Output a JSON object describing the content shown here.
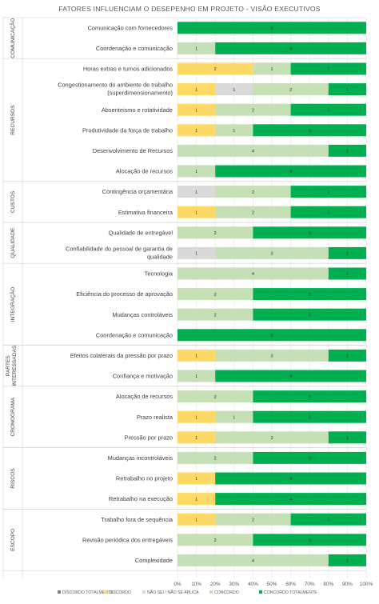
{
  "chart_data": {
    "type": "bar",
    "orientation": "horizontal",
    "stacked": "percent",
    "title": "FATORES INFLUENCIAM O DESEPENHO EM PROJETO - VISÃO EXECUTIVOS",
    "xlim": [
      0,
      100
    ],
    "x_ticks": [
      "0%",
      "10%",
      "20%",
      "30%",
      "40%",
      "50%",
      "60%",
      "70%",
      "80%",
      "90%",
      "100%"
    ],
    "legend_position": "bottom",
    "series": [
      {
        "name": "DISCORDO TOTALMENTE",
        "color": "#7f7f7f"
      },
      {
        "name": "DISCORDO",
        "color": "#ffd966"
      },
      {
        "name": "NÃO SEI / NÃO SE APLICA",
        "color": "#d9d9d9"
      },
      {
        "name": "CONCORDO",
        "color": "#c5e0b4"
      },
      {
        "name": "CONCORDO TOTALMENTE",
        "color": "#00b050"
      }
    ],
    "groups": [
      {
        "label": "COMUNICAÇÃO",
        "rows": [
          {
            "label": "Comunicação com fornecedores",
            "values": [
              0,
              0,
              0,
              0,
              5
            ]
          },
          {
            "label": "Coordenação e comunicação",
            "values": [
              0,
              0,
              0,
              1,
              4
            ]
          }
        ]
      },
      {
        "label": "RECURSOS",
        "rows": [
          {
            "label": "Horas extras e turnos adicionados",
            "values": [
              0,
              2,
              0,
              1,
              2
            ]
          },
          {
            "label": "Congestionamento do ambiente de trabalho (superdimensionamento)",
            "values": [
              0,
              1,
              1,
              2,
              1
            ]
          },
          {
            "label": "Absenteismo e rotatividade",
            "values": [
              0,
              1,
              0,
              2,
              2
            ]
          },
          {
            "label": "Produtividade da força de trabalho",
            "values": [
              0,
              1,
              0,
              1,
              3
            ]
          },
          {
            "label": "Desenvolvimento de Recursos",
            "values": [
              0,
              0,
              0,
              4,
              1
            ]
          },
          {
            "label": "Alocação de recursos",
            "values": [
              0,
              0,
              0,
              1,
              4
            ]
          }
        ]
      },
      {
        "label": "CUSTOS",
        "rows": [
          {
            "label": "Contingência orçamentária",
            "values": [
              0,
              0,
              1,
              2,
              2
            ]
          },
          {
            "label": "Estimativa financeira",
            "values": [
              0,
              1,
              0,
              2,
              2
            ]
          }
        ]
      },
      {
        "label": "QUALIDADE",
        "rows": [
          {
            "label": "Qualidade de entregável",
            "values": [
              0,
              0,
              0,
              2,
              3
            ]
          },
          {
            "label": "Confiabilidade do pessoal de garantia de qualidade",
            "values": [
              0,
              0,
              1,
              3,
              1
            ]
          }
        ]
      },
      {
        "label": "INTEGRAÇÃO",
        "rows": [
          {
            "label": "Tecnologia",
            "values": [
              0,
              0,
              0,
              4,
              1
            ]
          },
          {
            "label": "Eficiência do processo de aprovação",
            "values": [
              0,
              0,
              0,
              2,
              3
            ]
          },
          {
            "label": "Mudanças controláveis",
            "values": [
              0,
              0,
              0,
              2,
              3
            ]
          },
          {
            "label": "Coordenação e comunicação",
            "values": [
              0,
              0,
              0,
              0,
              5
            ]
          }
        ]
      },
      {
        "label": "PARTES INTERESSADAS",
        "rows": [
          {
            "label": "Efeitos colaterais da pressão por prazo",
            "values": [
              0,
              1,
              0,
              3,
              1
            ]
          },
          {
            "label": "Confiança e motivação",
            "values": [
              0,
              0,
              0,
              1,
              4
            ]
          }
        ]
      },
      {
        "label": "CRONOGRAMA",
        "rows": [
          {
            "label": "Alocação de recursos",
            "values": [
              0,
              0,
              0,
              2,
              3
            ]
          },
          {
            "label": "Prazo realista",
            "values": [
              0,
              1,
              0,
              1,
              3
            ]
          },
          {
            "label": "Pressão por prazo",
            "values": [
              0,
              1,
              0,
              3,
              1
            ]
          }
        ]
      },
      {
        "label": "RISCOS",
        "rows": [
          {
            "label": "Mudanças incontroláveis",
            "values": [
              0,
              0,
              0,
              2,
              3
            ]
          },
          {
            "label": "Retrabalho no projeto",
            "values": [
              0,
              1,
              0,
              0,
              4
            ]
          },
          {
            "label": "Retrabalho na execução",
            "values": [
              0,
              1,
              0,
              0,
              4
            ]
          }
        ]
      },
      {
        "label": "ESCOPO",
        "rows": [
          {
            "label": "Trabalho fora de sequência",
            "values": [
              0,
              1,
              0,
              2,
              2
            ]
          },
          {
            "label": "Revisão periódica dos entregáveis",
            "values": [
              0,
              0,
              0,
              2,
              3
            ]
          },
          {
            "label": "Complexidade",
            "values": [
              0,
              0,
              0,
              4,
              1
            ]
          }
        ]
      }
    ]
  }
}
